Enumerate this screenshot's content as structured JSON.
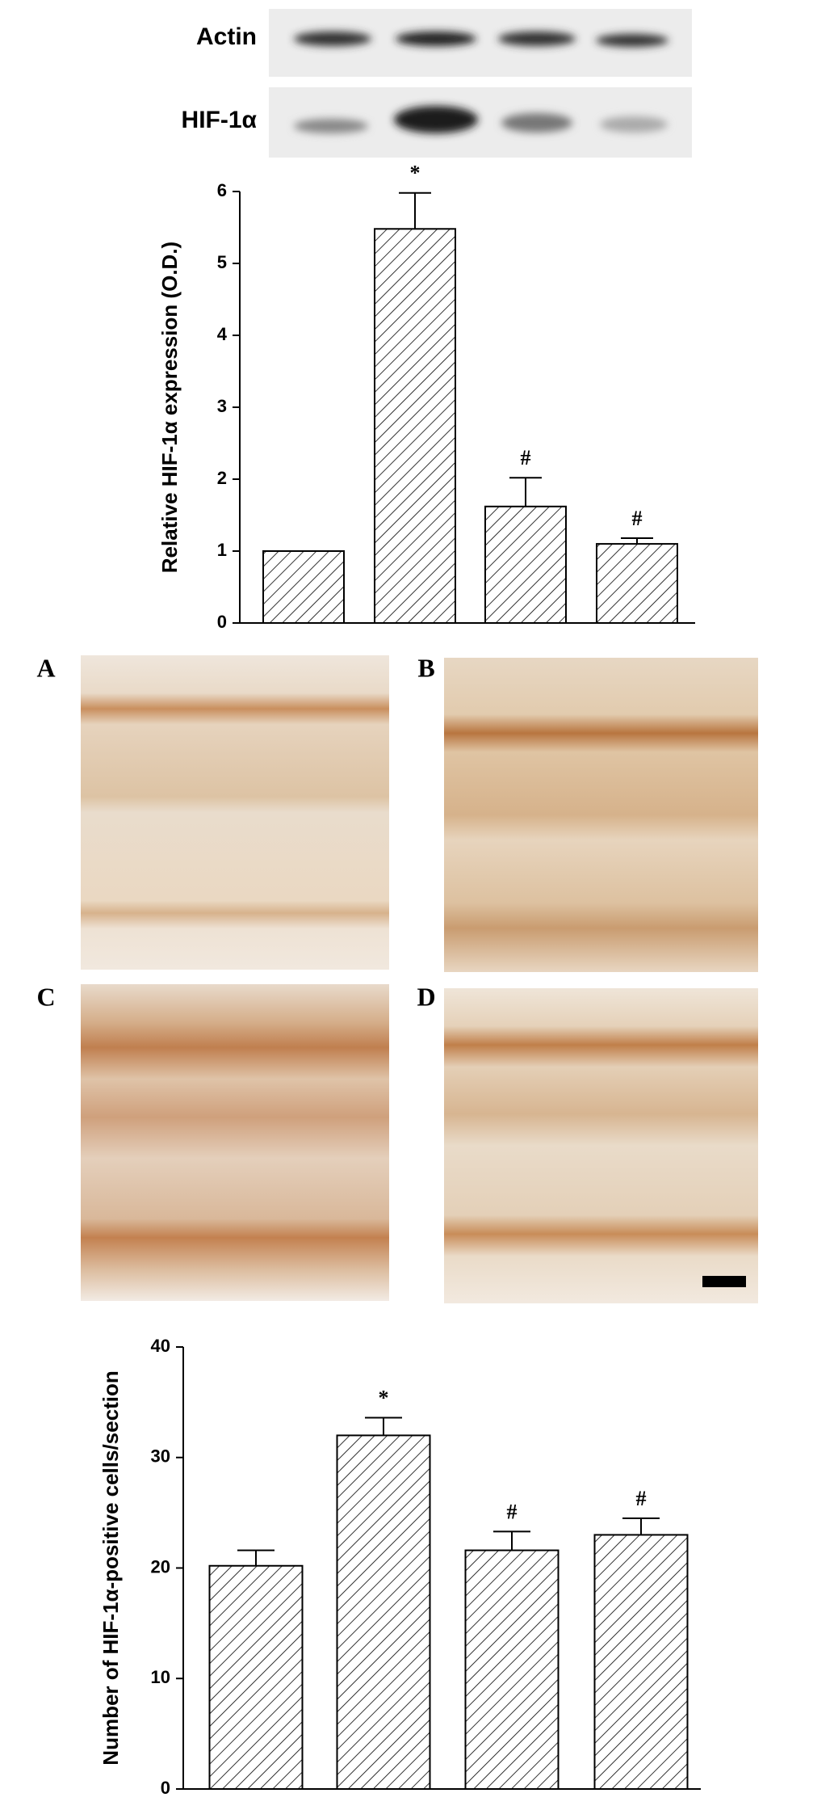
{
  "blot": {
    "labels": [
      "Actin",
      "HIF-1α"
    ]
  },
  "panels": [
    "A",
    "B",
    "C",
    "D"
  ],
  "chart_data": [
    {
      "type": "bar",
      "y_label": "Relative HIF-1α expression (O.D.)",
      "categories": [
        null,
        null,
        null,
        null
      ],
      "values": [
        1.0,
        5.48,
        1.62,
        1.1
      ],
      "errors": [
        0,
        0.5,
        0.4,
        0.08
      ],
      "markers": [
        null,
        "*",
        "#",
        "#"
      ],
      "color": "#000000",
      "ylim": [
        0,
        6
      ],
      "yticks": [
        0,
        1,
        2,
        3,
        4,
        5,
        6
      ]
    },
    {
      "type": "bar",
      "y_label": "Number of HIF-1α-positive cells/section",
      "categories": [
        null,
        null,
        null,
        null
      ],
      "values": [
        20.2,
        32,
        21.6,
        23
      ],
      "errors": [
        1.4,
        1.6,
        1.7,
        1.5
      ],
      "markers": [
        null,
        "*",
        "#",
        "#"
      ],
      "color": "#000000",
      "ylim": [
        0,
        40
      ],
      "yticks": [
        0,
        10,
        20,
        30,
        40
      ]
    }
  ]
}
